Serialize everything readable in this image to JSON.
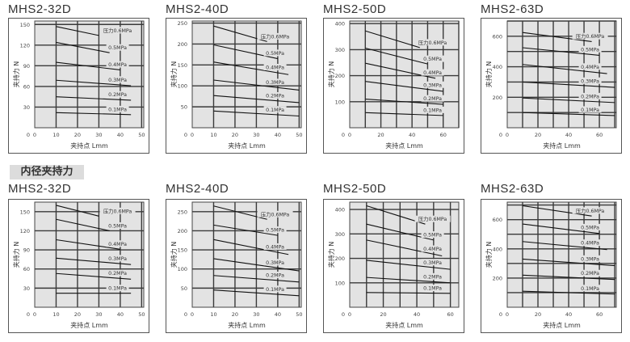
{
  "section_inner": "内径夹持力",
  "axis": {
    "xlabel": "夹持点 Lmm",
    "ylabel": "夹持力 N"
  },
  "chart_data": [
    {
      "type": "line",
      "group": "outer",
      "title": "MHS2-32D",
      "xlabel": "夹持点 Lmm",
      "ylabel": "夹持力 N",
      "xlim": [
        0,
        51
      ],
      "ylim": [
        0,
        155
      ],
      "xticks": [
        0,
        10,
        20,
        30,
        40,
        50
      ],
      "xgrid": [
        10,
        20,
        30,
        40,
        50
      ],
      "yticks": [
        0,
        30,
        60,
        90,
        120,
        150
      ],
      "series": [
        {
          "name": "压力0.6MPa",
          "x": [
            10,
            30
          ],
          "y": [
            147,
            134
          ]
        },
        {
          "name": "0.5MPa",
          "x": [
            10,
            35
          ],
          "y": [
            124,
            109
          ]
        },
        {
          "name": "0.4MPa",
          "x": [
            10,
            40
          ],
          "y": [
            95,
            84
          ]
        },
        {
          "name": "0.3MPa",
          "x": [
            10,
            45
          ],
          "y": [
            69,
            61
          ]
        },
        {
          "name": "0.2MPa",
          "x": [
            10,
            45
          ],
          "y": [
            45,
            40
          ]
        },
        {
          "name": "0.1MPa",
          "x": [
            10,
            45
          ],
          "y": [
            22,
            19
          ]
        }
      ]
    },
    {
      "type": "line",
      "group": "outer",
      "title": "MHS2-40D",
      "xlabel": "夹持点 Lmm",
      "ylabel": "夹持力 N",
      "xlim": [
        0,
        51
      ],
      "ylim": [
        0,
        255
      ],
      "xticks": [
        0,
        10,
        20,
        30,
        40,
        50
      ],
      "xgrid": [
        10,
        20,
        30,
        40,
        50
      ],
      "yticks": [
        0,
        50,
        100,
        150,
        200,
        250
      ],
      "series": [
        {
          "name": "压力0.6MPa",
          "x": [
            10,
            35
          ],
          "y": [
            243,
            206
          ]
        },
        {
          "name": "0.5MPa",
          "x": [
            10,
            40
          ],
          "y": [
            198,
            165
          ]
        },
        {
          "name": "0.4MPa",
          "x": [
            10,
            45
          ],
          "y": [
            157,
            127
          ]
        },
        {
          "name": "0.3MPa",
          "x": [
            10,
            50
          ],
          "y": [
            114,
            90
          ]
        },
        {
          "name": "0.2MPa",
          "x": [
            10,
            50
          ],
          "y": [
            77,
            60
          ]
        },
        {
          "name": "0.1MPa",
          "x": [
            10,
            50
          ],
          "y": [
            40,
            28
          ]
        }
      ]
    },
    {
      "type": "line",
      "group": "outer",
      "title": "MHS2-50D",
      "xlabel": "夹持点 Lmm",
      "ylabel": "夹持力 N",
      "xlim": [
        0,
        70
      ],
      "ylim": [
        0,
        410
      ],
      "xticks": [
        0,
        20,
        40,
        60
      ],
      "xgrid": [
        10,
        20,
        30,
        40,
        50,
        60,
        70
      ],
      "yticks": [
        0,
        100,
        200,
        300,
        400
      ],
      "series": [
        {
          "name": "压力0.6MPa",
          "x": [
            10,
            45
          ],
          "y": [
            372,
            308
          ]
        },
        {
          "name": "0.5MPa",
          "x": [
            10,
            50
          ],
          "y": [
            306,
            245
          ]
        },
        {
          "name": "0.4MPa",
          "x": [
            10,
            55
          ],
          "y": [
            248,
            190
          ]
        },
        {
          "name": "0.3MPa",
          "x": [
            10,
            60
          ],
          "y": [
            178,
            140
          ]
        },
        {
          "name": "0.2MPa",
          "x": [
            10,
            60
          ],
          "y": [
            110,
            90
          ]
        },
        {
          "name": "0.1MPa",
          "x": [
            10,
            60
          ],
          "y": [
            58,
            47
          ]
        }
      ]
    },
    {
      "type": "line",
      "group": "outer",
      "title": "MHS2-63D",
      "xlabel": "夹持点 Lmm",
      "ylabel": "夹持力 N",
      "xlim": [
        0,
        71
      ],
      "ylim": [
        0,
        700
      ],
      "xticks": [
        0,
        20,
        40,
        60
      ],
      "xgrid": [
        10,
        20,
        30,
        40,
        50,
        60,
        70
      ],
      "yticks": [
        0,
        200,
        400,
        600
      ],
      "ygrid": [
        100,
        200,
        300,
        400,
        500,
        600,
        700
      ],
      "series": [
        {
          "name": "压力0.6MPa",
          "x": [
            10,
            55
          ],
          "y": [
            625,
            565
          ]
        },
        {
          "name": "0.5MPa",
          "x": [
            10,
            60
          ],
          "y": [
            525,
            475
          ]
        },
        {
          "name": "0.4MPa",
          "x": [
            10,
            65
          ],
          "y": [
            415,
            355
          ]
        },
        {
          "name": "0.3MPa",
          "x": [
            10,
            70
          ],
          "y": [
            300,
            265
          ]
        },
        {
          "name": "0.2MPa",
          "x": [
            10,
            70
          ],
          "y": [
            195,
            165
          ]
        },
        {
          "name": "0.1MPa",
          "x": [
            10,
            70
          ],
          "y": [
            100,
            80
          ]
        }
      ]
    },
    {
      "type": "line",
      "group": "inner",
      "title": "MHS2-32D",
      "xlabel": "夹持点 Lmm",
      "ylabel": "夹持力 N",
      "xlim": [
        0,
        51
      ],
      "ylim": [
        0,
        165
      ],
      "xticks": [
        0,
        10,
        20,
        30,
        40,
        50
      ],
      "xgrid": [
        10,
        20,
        30,
        40,
        50
      ],
      "yticks": [
        0,
        30,
        60,
        90,
        120,
        150
      ],
      "series": [
        {
          "name": "压力0.6MPa",
          "x": [
            10,
            30
          ],
          "y": [
            160,
            143
          ]
        },
        {
          "name": "0.5MPa",
          "x": [
            10,
            35
          ],
          "y": [
            138,
            120
          ]
        },
        {
          "name": "0.4MPa",
          "x": [
            10,
            40
          ],
          "y": [
            106,
            91
          ]
        },
        {
          "name": "0.3MPa",
          "x": [
            10,
            45
          ],
          "y": [
            77,
            67
          ]
        },
        {
          "name": "0.2MPa",
          "x": [
            10,
            45
          ],
          "y": [
            53,
            44
          ]
        },
        {
          "name": "0.1MPa",
          "x": [
            10,
            45
          ],
          "y": [
            22,
            22
          ]
        }
      ]
    },
    {
      "type": "line",
      "group": "inner",
      "title": "MHS2-40D",
      "xlabel": "夹持点 Lmm",
      "ylabel": "夹持力 N",
      "xlim": [
        0,
        51
      ],
      "ylim": [
        0,
        275
      ],
      "xticks": [
        0,
        10,
        20,
        30,
        40,
        50
      ],
      "xgrid": [
        10,
        20,
        30,
        40,
        50
      ],
      "yticks": [
        0,
        50,
        100,
        150,
        200,
        250
      ],
      "series": [
        {
          "name": "压力0.6MPa",
          "x": [
            10,
            35
          ],
          "y": [
            265,
            230
          ]
        },
        {
          "name": "0.5MPa",
          "x": [
            10,
            40
          ],
          "y": [
            215,
            188
          ]
        },
        {
          "name": "0.4MPa",
          "x": [
            10,
            45
          ],
          "y": [
            177,
            138
          ]
        },
        {
          "name": "0.3MPa",
          "x": [
            10,
            50
          ],
          "y": [
            127,
            95
          ]
        },
        {
          "name": "0.2MPa",
          "x": [
            10,
            50
          ],
          "y": [
            83,
            66
          ]
        },
        {
          "name": "0.1MPa",
          "x": [
            10,
            50
          ],
          "y": [
            45,
            30
          ]
        }
      ]
    },
    {
      "type": "line",
      "group": "inner",
      "title": "MHS2-50D",
      "xlabel": "夹持点 Lmm",
      "ylabel": "夹持力 N",
      "xlim": [
        0,
        65
      ],
      "ylim": [
        0,
        430
      ],
      "xticks": [
        0,
        20,
        40,
        60
      ],
      "xgrid": [
        10,
        20,
        30,
        40,
        50,
        60
      ],
      "yticks": [
        0,
        100,
        200,
        300,
        400
      ],
      "series": [
        {
          "name": "压力0.6MPa",
          "x": [
            10,
            45
          ],
          "y": [
            415,
            340
          ]
        },
        {
          "name": "0.5MPa",
          "x": [
            10,
            50
          ],
          "y": [
            340,
            275
          ]
        },
        {
          "name": "0.4MPa",
          "x": [
            10,
            55
          ],
          "y": [
            275,
            210
          ]
        },
        {
          "name": "0.3MPa",
          "x": [
            10,
            60
          ],
          "y": [
            192,
            155
          ]
        },
        {
          "name": "0.2MPa",
          "x": [
            10,
            60
          ],
          "y": [
            122,
            100
          ]
        },
        {
          "name": "0.1MPa",
          "x": [
            10,
            60
          ],
          "y": [
            60,
            57
          ]
        }
      ]
    },
    {
      "type": "line",
      "group": "inner",
      "title": "MHS2-63D",
      "xlabel": "夹持点 Lmm",
      "ylabel": "夹持力 N",
      "xlim": [
        0,
        71
      ],
      "ylim": [
        0,
        720
      ],
      "xticks": [
        0,
        20,
        40,
        60
      ],
      "xgrid": [
        10,
        20,
        30,
        40,
        50,
        60,
        70
      ],
      "yticks": [
        0,
        200,
        400,
        600
      ],
      "ygrid": [
        100,
        200,
        300,
        400,
        500,
        600,
        700
      ],
      "series": [
        {
          "name": "压力0.6MPa",
          "x": [
            10,
            55
          ],
          "y": [
            695,
            625
          ]
        },
        {
          "name": "0.5MPa",
          "x": [
            10,
            60
          ],
          "y": [
            570,
            505
          ]
        },
        {
          "name": "0.4MPa",
          "x": [
            10,
            65
          ],
          "y": [
            450,
            395
          ]
        },
        {
          "name": "0.3MPa",
          "x": [
            10,
            70
          ],
          "y": [
            330,
            285
          ]
        },
        {
          "name": "0.2MPa",
          "x": [
            10,
            70
          ],
          "y": [
            220,
            190
          ]
        },
        {
          "name": "0.1MPa",
          "x": [
            10,
            70
          ],
          "y": [
            110,
            90
          ]
        }
      ]
    }
  ]
}
